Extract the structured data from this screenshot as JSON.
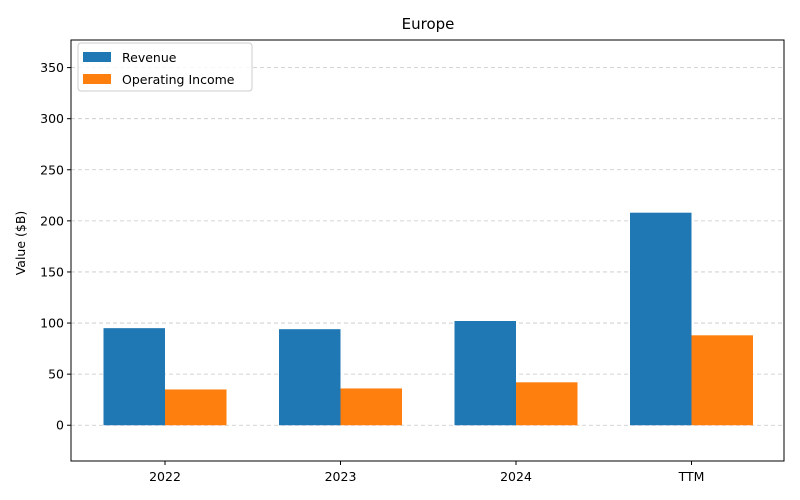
{
  "chart_data": {
    "type": "bar",
    "title": "Europe",
    "xlabel": "",
    "ylabel": "Value ($B)",
    "categories": [
      "2022",
      "2023",
      "2024",
      "TTM"
    ],
    "series": [
      {
        "name": "Revenue",
        "values": [
          95,
          94,
          102,
          208
        ],
        "color": "#1f77b4"
      },
      {
        "name": "Operating Income",
        "values": [
          35,
          36,
          42,
          88
        ],
        "color": "#ff7f0e"
      }
    ],
    "ylim": [
      -35,
      377
    ],
    "yticks": [
      0,
      50,
      100,
      150,
      200,
      250,
      300,
      350
    ],
    "grid": "y-dashed",
    "legend_position": "top-left"
  }
}
